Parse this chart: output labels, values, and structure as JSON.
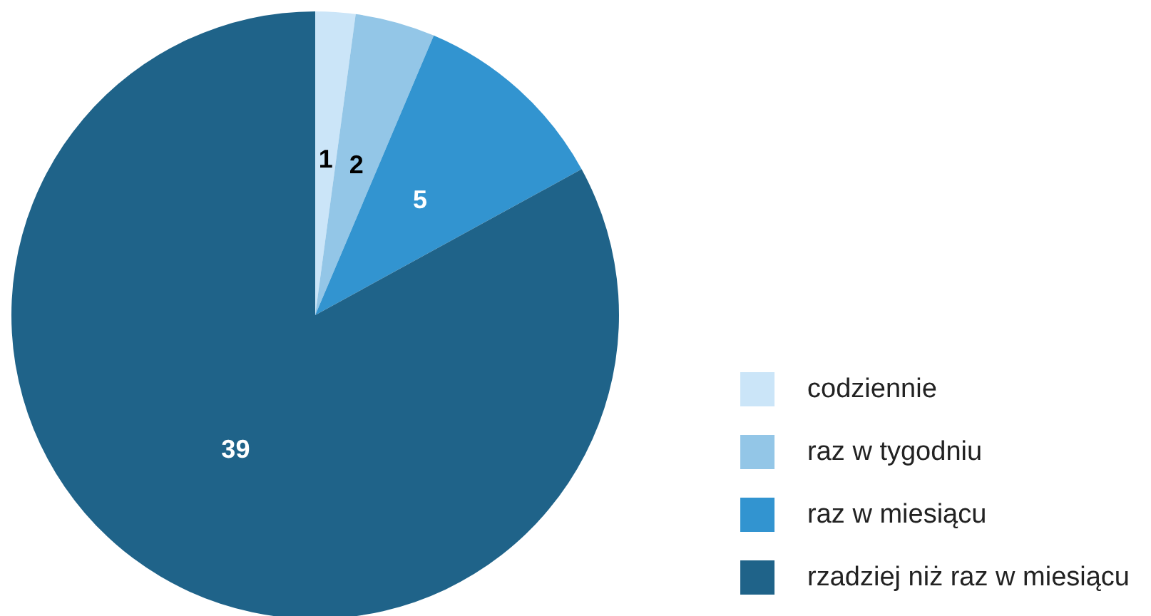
{
  "chart_data": {
    "type": "pie",
    "categories": [
      "codziennie",
      "raz w tygodniu",
      "raz w miesiącu",
      "rzadziej niż raz w miesiącu"
    ],
    "values": [
      1,
      2,
      5,
      39
    ],
    "colors": [
      "#cbe5f8",
      "#93c6e7",
      "#3294d0",
      "#1f6389"
    ],
    "data_labels": true,
    "legend": "bottom right"
  }
}
